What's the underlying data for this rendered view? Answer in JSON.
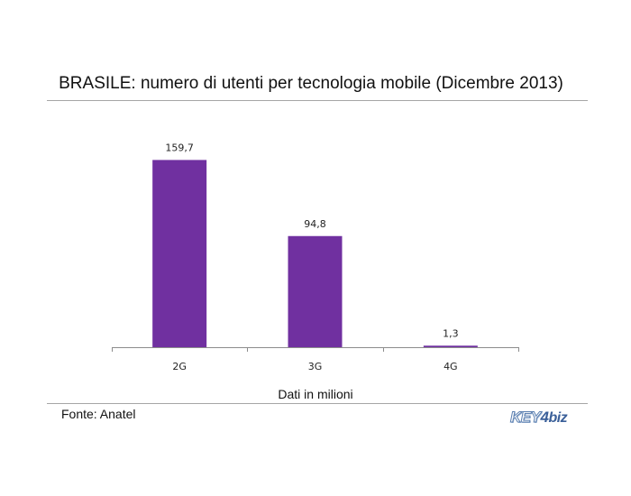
{
  "chart_data": {
    "type": "bar",
    "title": "BRASILE: numero di utenti per tecnologia mobile (Dicembre 2013)",
    "categories": [
      "2G",
      "3G",
      "4G"
    ],
    "values": [
      159.7,
      94.8,
      1.3
    ],
    "value_labels": [
      "159,7",
      "94,8",
      "1,3"
    ],
    "xlabel": "Dati in milioni",
    "ylabel": "",
    "ylim": [
      0,
      180
    ],
    "grid": false,
    "legend": "none",
    "bar_color": "#7030a0"
  },
  "source": "Fonte: Anatel",
  "logo": {
    "key": "KEY",
    "num": "4",
    "biz": "biz"
  },
  "colors": {
    "bar": "#7030a0",
    "axis": "#8c8c8c",
    "rule": "#a6a6a6",
    "logo": "#3a5f99"
  }
}
